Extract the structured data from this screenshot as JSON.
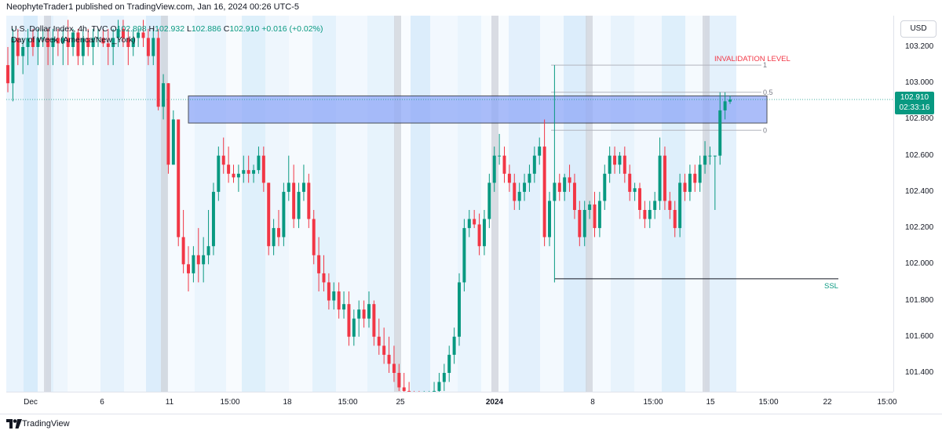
{
  "header": {
    "published_line": "NeophyteTrader1 published on TradingView.com, Jan 16, 2024 00:26 UTC-5"
  },
  "legend": {
    "symbol": "U.S. Dollar Index, 4h, TVC",
    "open_label": "O",
    "open": "102.898",
    "high_label": "H",
    "high": "102.932",
    "low_label": "L",
    "low": "102.886",
    "close_label": "C",
    "close": "102.910",
    "change": "+0.016 (+0.02%)",
    "indicator": "Day of Week (America/New_York)"
  },
  "price_axis": {
    "currency_button": "USD",
    "ticks": [
      "103.200",
      "103.000",
      "102.800",
      "102.600",
      "102.400",
      "102.200",
      "102.000",
      "101.800",
      "101.600",
      "101.400"
    ],
    "last_price": "102.910",
    "countdown": "02:33:16"
  },
  "time_axis": {
    "ticks": [
      {
        "label": "Dec",
        "bold": false
      },
      {
        "label": "6",
        "bold": false
      },
      {
        "label": "11",
        "bold": false
      },
      {
        "label": "15:00",
        "bold": false
      },
      {
        "label": "18",
        "bold": false
      },
      {
        "label": "15:00",
        "bold": false
      },
      {
        "label": "25",
        "bold": false
      },
      {
        "label": "2024",
        "bold": true
      },
      {
        "label": "8",
        "bold": false
      },
      {
        "label": "15:00",
        "bold": false
      },
      {
        "label": "15",
        "bold": false
      },
      {
        "label": "15:00",
        "bold": false
      },
      {
        "label": "22",
        "bold": false
      },
      {
        "label": "15:00",
        "bold": false
      }
    ]
  },
  "annotations": {
    "invalidation": "INVALIDATION LEVEL",
    "fib_1": "1",
    "fib_05": "0.5",
    "fib_0": "0",
    "ssl": "SSL"
  },
  "footer": {
    "brand": "TradingView"
  },
  "colors": {
    "up": "#089981",
    "down": "#f23645",
    "zone": "#8fa8f8",
    "invalidation": "#f23645",
    "ssl": "#089981"
  },
  "chart_data": {
    "type": "candlestick",
    "symbol": "U.S. Dollar Index",
    "interval": "4h",
    "ylim": [
      101.3,
      103.3
    ],
    "ohlc": [
      [
        103.1,
        103.2,
        102.95,
        103.0
      ],
      [
        103.0,
        103.3,
        102.9,
        103.25
      ],
      [
        103.25,
        103.3,
        103.1,
        103.15
      ],
      [
        103.15,
        103.25,
        103.05,
        103.2
      ],
      [
        103.2,
        103.3,
        103.1,
        103.25
      ],
      [
        103.25,
        103.3,
        103.15,
        103.2
      ],
      [
        103.2,
        103.3,
        103.1,
        103.25
      ],
      [
        103.25,
        103.3,
        103.2,
        103.25
      ],
      [
        103.25,
        103.3,
        103.1,
        103.2
      ],
      [
        103.2,
        103.3,
        103.1,
        103.25
      ],
      [
        103.25,
        103.3,
        103.15,
        103.22
      ],
      [
        103.22,
        103.3,
        103.1,
        103.25
      ],
      [
        103.25,
        103.35,
        103.1,
        103.2
      ],
      [
        103.2,
        103.3,
        103.15,
        103.28
      ],
      [
        103.28,
        103.3,
        103.1,
        103.15
      ],
      [
        103.15,
        103.3,
        103.1,
        103.25
      ],
      [
        103.25,
        103.3,
        103.15,
        103.2
      ],
      [
        103.2,
        103.3,
        103.1,
        103.25
      ],
      [
        103.25,
        103.3,
        103.2,
        103.25
      ],
      [
        103.25,
        103.3,
        103.2,
        103.22
      ],
      [
        103.22,
        103.3,
        103.1,
        103.2
      ],
      [
        103.2,
        103.3,
        103.1,
        103.25
      ],
      [
        103.25,
        103.35,
        103.2,
        103.3
      ],
      [
        103.3,
        103.35,
        103.2,
        103.25
      ],
      [
        103.25,
        103.3,
        103.1,
        103.2
      ],
      [
        103.2,
        103.3,
        103.15,
        103.25
      ],
      [
        103.25,
        103.3,
        103.2,
        103.28
      ],
      [
        103.28,
        103.35,
        103.2,
        103.25
      ],
      [
        103.25,
        103.3,
        103.1,
        103.15
      ],
      [
        103.15,
        103.3,
        103.1,
        103.25
      ],
      [
        103.25,
        103.3,
        102.85,
        102.87
      ],
      [
        102.87,
        103.05,
        102.8,
        103.0
      ],
      [
        103.0,
        103.0,
        102.5,
        102.55
      ],
      [
        102.55,
        102.85,
        102.55,
        102.8
      ],
      [
        102.8,
        102.8,
        102.1,
        102.15
      ],
      [
        102.15,
        102.3,
        101.95,
        102.0
      ],
      [
        102.0,
        102.1,
        101.85,
        101.95
      ],
      [
        101.95,
        102.1,
        101.9,
        102.05
      ],
      [
        102.05,
        102.2,
        101.9,
        102.0
      ],
      [
        102.0,
        102.15,
        101.9,
        102.05
      ],
      [
        102.05,
        102.3,
        102.0,
        102.1
      ],
      [
        102.1,
        102.45,
        102.05,
        102.4
      ],
      [
        102.4,
        102.65,
        102.35,
        102.6
      ],
      [
        102.6,
        102.7,
        102.5,
        102.55
      ],
      [
        102.55,
        102.65,
        102.45,
        102.5
      ],
      [
        102.5,
        102.55,
        102.45,
        102.48
      ],
      [
        102.48,
        102.55,
        102.4,
        102.5
      ],
      [
        102.5,
        102.6,
        102.45,
        102.52
      ],
      [
        102.52,
        102.6,
        102.45,
        102.5
      ],
      [
        102.5,
        102.55,
        102.45,
        102.52
      ],
      [
        102.52,
        102.65,
        102.5,
        102.6
      ],
      [
        102.6,
        102.65,
        102.4,
        102.45
      ],
      [
        102.45,
        102.45,
        102.05,
        102.1
      ],
      [
        102.1,
        102.25,
        102.05,
        102.2
      ],
      [
        102.2,
        102.3,
        102.1,
        102.15
      ],
      [
        102.15,
        102.45,
        102.1,
        102.4
      ],
      [
        102.4,
        102.6,
        102.35,
        102.45
      ],
      [
        102.45,
        102.55,
        102.2,
        102.25
      ],
      [
        102.25,
        102.45,
        102.2,
        102.4
      ],
      [
        102.4,
        102.55,
        102.35,
        102.45
      ],
      [
        102.45,
        102.5,
        102.2,
        102.25
      ],
      [
        102.25,
        102.3,
        102.0,
        102.05
      ],
      [
        102.05,
        102.15,
        101.85,
        101.95
      ],
      [
        101.95,
        102.05,
        101.85,
        101.9
      ],
      [
        101.9,
        101.95,
        101.75,
        101.8
      ],
      [
        101.8,
        101.9,
        101.75,
        101.85
      ],
      [
        101.85,
        101.9,
        101.7,
        101.75
      ],
      [
        101.75,
        101.85,
        101.7,
        101.78
      ],
      [
        101.78,
        101.85,
        101.55,
        101.6
      ],
      [
        101.6,
        101.75,
        101.55,
        101.7
      ],
      [
        101.7,
        101.8,
        101.6,
        101.75
      ],
      [
        101.75,
        101.8,
        101.65,
        101.7
      ],
      [
        101.7,
        101.85,
        101.65,
        101.78
      ],
      [
        101.78,
        101.8,
        101.55,
        101.6
      ],
      [
        101.6,
        101.7,
        101.5,
        101.55
      ],
      [
        101.55,
        101.65,
        101.45,
        101.5
      ],
      [
        101.5,
        101.6,
        101.4,
        101.45
      ],
      [
        101.45,
        101.55,
        101.35,
        101.4
      ],
      [
        101.4,
        101.45,
        101.3,
        101.32
      ],
      [
        101.32,
        101.4,
        101.25,
        101.3
      ],
      [
        101.3,
        101.35,
        101.25,
        101.28
      ],
      [
        101.28,
        101.3,
        101.2,
        101.25
      ],
      [
        101.25,
        101.3,
        101.2,
        101.22
      ],
      [
        101.22,
        101.3,
        101.2,
        101.25
      ],
      [
        101.25,
        101.3,
        101.2,
        101.28
      ],
      [
        101.28,
        101.35,
        101.2,
        101.3
      ],
      [
        101.3,
        101.4,
        101.25,
        101.35
      ],
      [
        101.35,
        101.45,
        101.3,
        101.4
      ],
      [
        101.4,
        101.55,
        101.35,
        101.5
      ],
      [
        101.5,
        101.65,
        101.45,
        101.6
      ],
      [
        101.6,
        101.95,
        101.55,
        101.9
      ],
      [
        101.9,
        102.25,
        101.85,
        102.2
      ],
      [
        102.2,
        102.3,
        102.15,
        102.25
      ],
      [
        102.25,
        102.3,
        102.2,
        102.22
      ],
      [
        102.22,
        102.28,
        102.05,
        102.1
      ],
      [
        102.1,
        102.3,
        102.05,
        102.25
      ],
      [
        102.25,
        102.5,
        102.2,
        102.45
      ],
      [
        102.45,
        102.65,
        102.4,
        102.6
      ],
      [
        102.6,
        102.72,
        102.55,
        102.6
      ],
      [
        102.6,
        102.65,
        102.45,
        102.5
      ],
      [
        102.5,
        102.55,
        102.4,
        102.45
      ],
      [
        102.45,
        102.5,
        102.3,
        102.35
      ],
      [
        102.35,
        102.45,
        102.3,
        102.4
      ],
      [
        102.4,
        102.5,
        102.35,
        102.45
      ],
      [
        102.45,
        102.55,
        102.4,
        102.5
      ],
      [
        102.5,
        102.65,
        102.45,
        102.6
      ],
      [
        102.6,
        102.7,
        102.55,
        102.65
      ],
      [
        102.65,
        102.8,
        102.1,
        102.15
      ],
      [
        102.15,
        102.4,
        102.1,
        102.35
      ],
      [
        102.35,
        103.1,
        101.9,
        102.45
      ],
      [
        102.45,
        102.5,
        102.35,
        102.4
      ],
      [
        102.4,
        102.5,
        102.35,
        102.48
      ],
      [
        102.48,
        102.55,
        102.4,
        102.45
      ],
      [
        102.45,
        102.5,
        102.25,
        102.3
      ],
      [
        102.3,
        102.35,
        102.1,
        102.15
      ],
      [
        102.15,
        102.35,
        102.1,
        102.3
      ],
      [
        102.3,
        102.35,
        102.25,
        102.33
      ],
      [
        102.33,
        102.4,
        102.15,
        102.2
      ],
      [
        102.2,
        102.4,
        102.15,
        102.35
      ],
      [
        102.35,
        102.55,
        102.3,
        102.5
      ],
      [
        102.5,
        102.65,
        102.45,
        102.6
      ],
      [
        102.6,
        102.65,
        102.5,
        102.55
      ],
      [
        102.55,
        102.62,
        102.5,
        102.6
      ],
      [
        102.6,
        102.65,
        102.45,
        102.5
      ],
      [
        102.5,
        102.55,
        102.35,
        102.4
      ],
      [
        102.4,
        102.45,
        102.35,
        102.42
      ],
      [
        102.42,
        102.45,
        102.25,
        102.3
      ],
      [
        102.3,
        102.35,
        102.2,
        102.25
      ],
      [
        102.25,
        102.35,
        102.2,
        102.3
      ],
      [
        102.3,
        102.4,
        102.25,
        102.35
      ],
      [
        102.35,
        102.7,
        102.3,
        102.6
      ],
      [
        102.6,
        102.65,
        102.3,
        102.35
      ],
      [
        102.35,
        102.4,
        102.25,
        102.3
      ],
      [
        102.3,
        102.35,
        102.15,
        102.2
      ],
      [
        102.2,
        102.5,
        102.15,
        102.45
      ],
      [
        102.45,
        102.5,
        102.35,
        102.4
      ],
      [
        102.4,
        102.55,
        102.35,
        102.5
      ],
      [
        102.5,
        102.55,
        102.4,
        102.45
      ],
      [
        102.45,
        102.6,
        102.4,
        102.55
      ],
      [
        102.55,
        102.68,
        102.5,
        102.6
      ],
      [
        102.6,
        102.65,
        102.55,
        102.6
      ],
      [
        102.6,
        102.6,
        102.3,
        102.6
      ],
      [
        102.6,
        102.95,
        102.55,
        102.85
      ],
      [
        102.85,
        102.95,
        102.8,
        102.9
      ],
      [
        102.898,
        102.932,
        102.886,
        102.91
      ]
    ],
    "zone": {
      "from": 102.78,
      "to": 102.93
    },
    "levels": [
      {
        "name": "INVALIDATION LEVEL",
        "value": 103.1
      },
      {
        "name": "0.5",
        "value": 102.95
      },
      {
        "name": "0",
        "value": 102.74
      },
      {
        "name": "SSL",
        "value": 101.92
      }
    ]
  }
}
